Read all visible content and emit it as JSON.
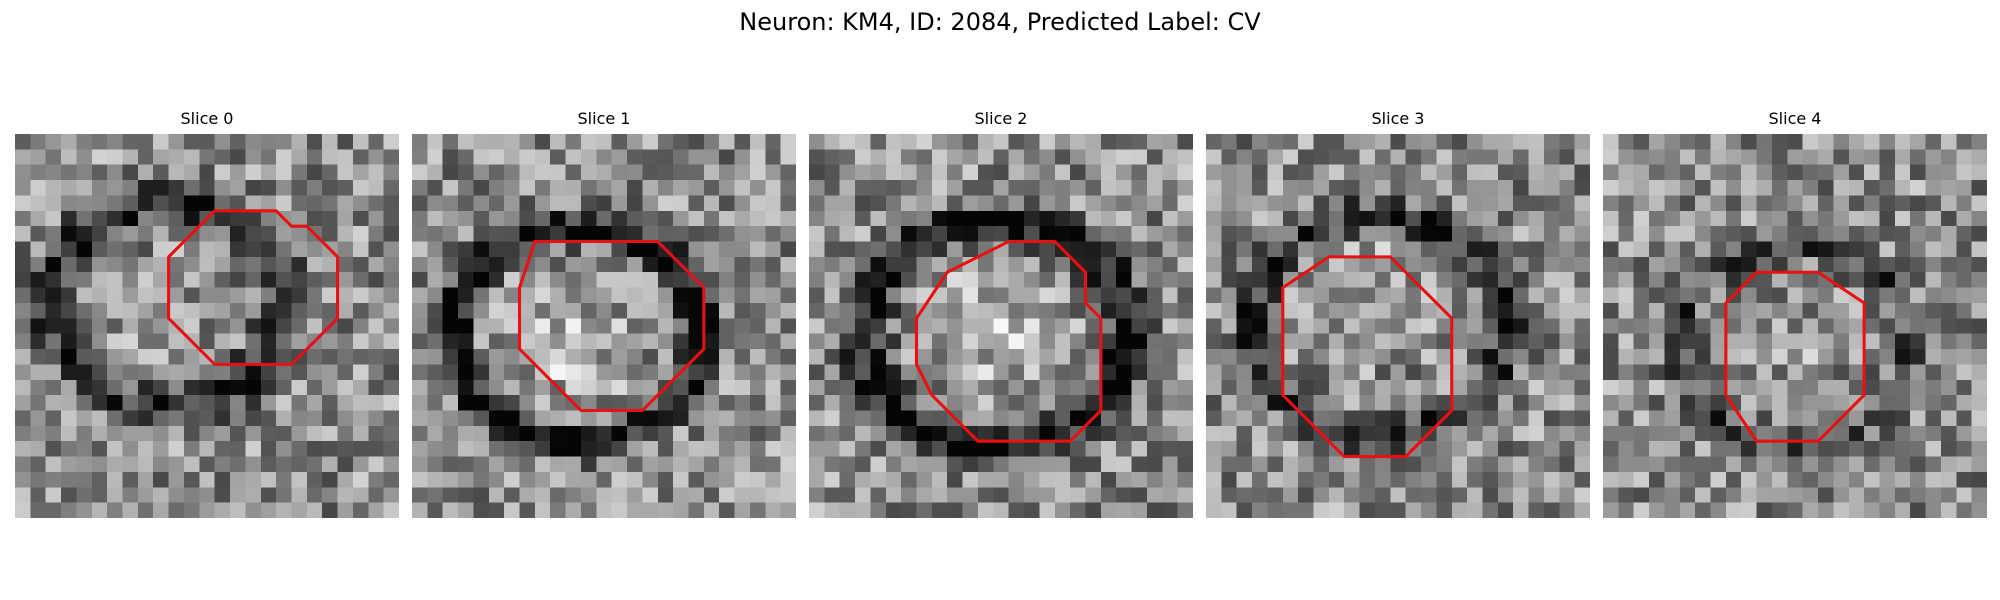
{
  "figure": {
    "title": "Neuron: KM4, ID: 2084, Predicted Label: CV"
  },
  "panels": [
    {
      "title": "Slice 0"
    },
    {
      "title": "Slice 1"
    },
    {
      "title": "Slice 2"
    },
    {
      "title": "Slice 3"
    },
    {
      "title": "Slice 4"
    }
  ],
  "colors": {
    "roi_contour": "#e81010",
    "background": "#ffffff"
  },
  "image_style": "grayscale noisy microscopy patch, 25x25 grid, red polygonal ROI outline"
}
